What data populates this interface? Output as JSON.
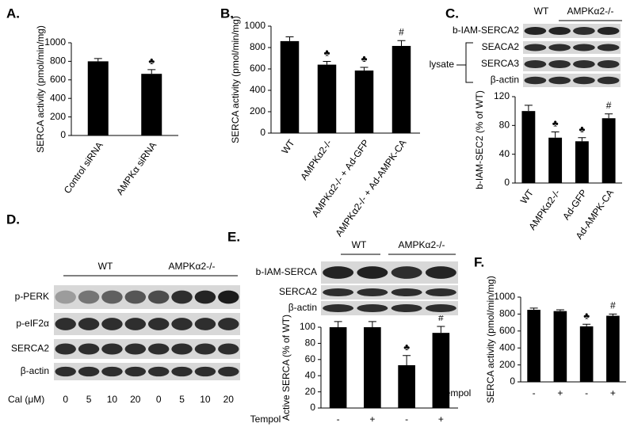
{
  "chart_data": [
    {
      "type": "bar",
      "panel_label": "A.",
      "ylabel": "SERCA activity (pmol/min/mg)",
      "categories": [
        "Control siRNA",
        "AMPKα siRNA"
      ],
      "values": [
        800,
        665
      ],
      "errors": [
        30,
        45
      ],
      "annotations": [
        null,
        "♣"
      ],
      "ylim": [
        0,
        1000
      ],
      "yticks": [
        0,
        200,
        400,
        600,
        800,
        1000
      ],
      "color": "#000000"
    },
    {
      "type": "bar",
      "panel_label": "B.",
      "ylabel": "SERCA activity (pmol/min/mg)",
      "categories": [
        "WT",
        "AMPKα2-/-",
        "AMPKα2-/- + Ad-GFP",
        "AMPKα2-/- + Ad-AMPK-CA"
      ],
      "values": [
        860,
        640,
        585,
        815
      ],
      "errors": [
        40,
        30,
        30,
        50
      ],
      "annotations": [
        null,
        "♣",
        "♣",
        "#"
      ],
      "ylim": [
        0,
        1000
      ],
      "yticks": [
        0,
        200,
        400,
        600,
        800,
        1000
      ],
      "color": "#000000"
    },
    {
      "type": "bar",
      "panel_label": "C.",
      "ylabel": "b-IAM-SEC2 (% of WT)",
      "categories": [
        "WT",
        "AMPKα2-/-",
        "Ad-GFP",
        "Ad-AMPK-CA"
      ],
      "values": [
        100,
        63,
        58,
        90
      ],
      "errors": [
        8,
        8,
        5,
        6
      ],
      "annotations": [
        null,
        "♣",
        "♣",
        "#"
      ],
      "ylim": [
        0,
        120
      ],
      "yticks": [
        0,
        40,
        80,
        120
      ],
      "color": "#000000"
    },
    {
      "type": "bar",
      "panel_label": "E.",
      "ylabel": "Active SERCA (% of WT)",
      "xlabel": "Tempol",
      "categories": [
        "-",
        "+",
        "-",
        "+"
      ],
      "values": [
        100,
        100,
        53,
        93
      ],
      "errors": [
        7,
        7,
        12,
        8
      ],
      "annotations": [
        null,
        null,
        "♣",
        "#"
      ],
      "ylim": [
        0,
        100
      ],
      "yticks": [
        0,
        20,
        40,
        60,
        80,
        100
      ],
      "color": "#000000"
    },
    {
      "type": "bar",
      "panel_label": "F.",
      "ylabel": "SERCA activity (pmol/min/mg)",
      "xlabel": "Tempol",
      "categories": [
        "-",
        "+",
        "-",
        "+"
      ],
      "values": [
        850,
        835,
        655,
        780
      ],
      "errors": [
        20,
        15,
        25,
        20
      ],
      "annotations": [
        null,
        null,
        "♣",
        "#"
      ],
      "ylim": [
        0,
        1000
      ],
      "yticks": [
        0,
        200,
        400,
        600,
        800,
        1000
      ],
      "color": "#000000"
    }
  ],
  "blots": [
    {
      "group_labels": [
        "WT",
        "AMPKα2-/-"
      ],
      "row_labels": [
        "b-IAM-SERCA2",
        "SEACA2",
        "SERCA3",
        "β-actin"
      ],
      "lysate_label": "lysate"
    },
    {
      "panel_label": "D.",
      "group_labels": [
        "WT",
        "AMPKα2-/-"
      ],
      "row_labels": [
        "p-PERK",
        "p-eIF2α",
        "SERCA2",
        "β-actin"
      ],
      "lane_title": "Cal (μM)",
      "lanes": [
        0,
        5,
        10,
        20,
        0,
        5,
        10,
        20
      ]
    },
    {
      "group_labels": [
        "WT",
        "AMPKα2-/-"
      ],
      "row_labels": [
        "b-IAM-SERCA",
        "SERCA2",
        "β-actin"
      ]
    }
  ]
}
